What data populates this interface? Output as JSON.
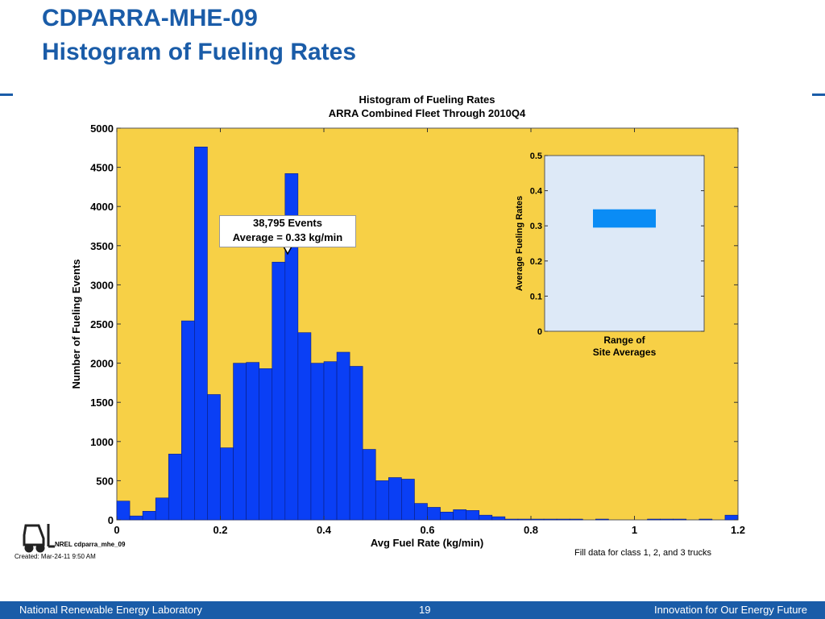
{
  "slide": {
    "title_line1": "CDPARRA-MHE-09",
    "title_line2": "Histogram of Fueling Rates",
    "accent_color": "#1a5ca8"
  },
  "footer": {
    "left": "National Renewable Energy Laboratory",
    "page": "19",
    "right": "Innovation for Our Energy Future"
  },
  "annotation": {
    "line1": "38,795 Events",
    "line2": "Average = 0.33 kg/min"
  },
  "notes": {
    "created": "Created: Mar-24-11  9:50 AM",
    "nrel_label": "NREL cdparra_mhe_09",
    "fill_note": "Fill data for class 1, 2, and 3 trucks",
    "logo_icon": "forklift-icon"
  },
  "chart_data": [
    {
      "type": "bar",
      "title": "Histogram of Fueling Rates",
      "subtitle": "ARRA Combined Fleet Through 2010Q4",
      "xlabel": "Avg Fuel Rate (kg/min)",
      "ylabel": "Number of Fueling Events",
      "xlim": [
        0,
        1.2
      ],
      "ylim": [
        0,
        5000
      ],
      "xticks": [
        "0",
        "0.2",
        "0.4",
        "0.6",
        "0.8",
        "1",
        "1.2"
      ],
      "yticks": [
        "0",
        "500",
        "1000",
        "1500",
        "2000",
        "2500",
        "3000",
        "3500",
        "4000",
        "4500",
        "5000"
      ],
      "bin_width": 0.025,
      "bin_starts": [
        0,
        0.025,
        0.05,
        0.075,
        0.1,
        0.125,
        0.15,
        0.175,
        0.2,
        0.225,
        0.25,
        0.275,
        0.3,
        0.325,
        0.35,
        0.375,
        0.4,
        0.425,
        0.45,
        0.475,
        0.5,
        0.525,
        0.55,
        0.575,
        0.6,
        0.625,
        0.65,
        0.675,
        0.7,
        0.725,
        0.75,
        0.775,
        0.8,
        0.825,
        0.85,
        0.875,
        0.9,
        0.925,
        0.95,
        0.975,
        1.0,
        1.025,
        1.05,
        1.075,
        1.1,
        1.125,
        1.15,
        1.175
      ],
      "values": [
        240,
        50,
        110,
        280,
        840,
        2540,
        4760,
        1600,
        920,
        2000,
        2010,
        1930,
        3290,
        4420,
        2390,
        2000,
        2020,
        2140,
        1960,
        900,
        500,
        540,
        520,
        210,
        160,
        100,
        130,
        120,
        60,
        40,
        10,
        10,
        10,
        10,
        10,
        10,
        0,
        10,
        0,
        0,
        0,
        10,
        10,
        10,
        0,
        10,
        0,
        60
      ],
      "bar_color": "#0a3ff5",
      "plot_background": "#f7d046",
      "marker_x": 0.33
    },
    {
      "type": "bar",
      "xlabel": "Range of\nSite Averages",
      "ylabel": "Average Fueling Rates",
      "ylim": [
        0,
        0.5
      ],
      "yticks": [
        "0",
        "0.1",
        "0.2",
        "0.3",
        "0.4",
        "0.5"
      ],
      "range": [
        0.295,
        0.347
      ],
      "bar_color": "#0a8cf5",
      "plot_background": "#dde9f7"
    }
  ]
}
